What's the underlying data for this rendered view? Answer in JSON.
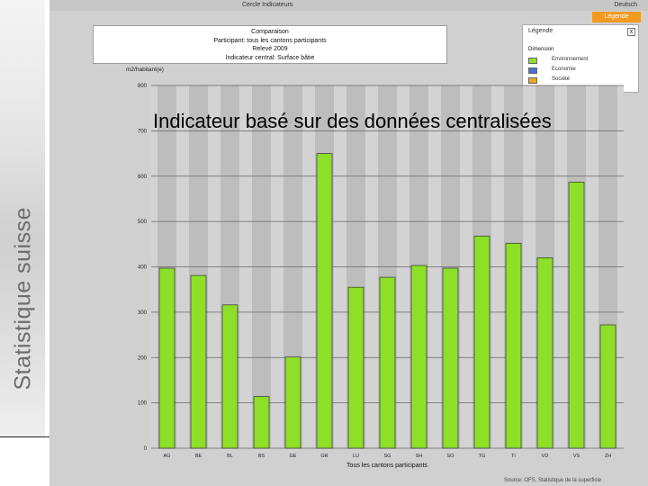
{
  "sidebar": {
    "brand_text": "Statistique suisse"
  },
  "topbar": {
    "title": "Cercle Indicateurs",
    "language": "Deutsch"
  },
  "legend_tab": {
    "label": "Légende"
  },
  "info": {
    "line1": "Comparaison",
    "line2": "Participant: tous les cantons participants",
    "line3": "Relevé 2009",
    "line4": "Indicateur central: Surface bâtie"
  },
  "legend": {
    "title": "Légende",
    "close": "x",
    "dimension_title": "Dimension",
    "items": [
      {
        "label": "Environnement",
        "color": "#8ddf28"
      },
      {
        "label": "Economie",
        "color": "#4a6fe0"
      },
      {
        "label": "Société",
        "color": "#f0a818"
      }
    ]
  },
  "overlay": {
    "text": "Indicateur basé sur des données centralisées"
  },
  "source": {
    "text": "Source: OFS, Statistique de la superficie"
  },
  "chart_data": {
    "type": "bar",
    "ylabel": "m2/habitant(e)",
    "xlabel": "Tous les cantons participants",
    "ylim": [
      0,
      800
    ],
    "yticks": [
      0,
      100,
      200,
      300,
      400,
      500,
      600,
      700,
      800
    ],
    "categories": [
      "AG",
      "BE",
      "BL",
      "BS",
      "GE",
      "GR",
      "LU",
      "SG",
      "SH",
      "SO",
      "TG",
      "TI",
      "VD",
      "VS",
      "ZH"
    ],
    "values": [
      397,
      381,
      316,
      114,
      201,
      650,
      355,
      377,
      403,
      397,
      468,
      452,
      420,
      587,
      272
    ],
    "bar_color": "#8ddf28",
    "band_color": "#bdbdbd",
    "grid": true
  }
}
